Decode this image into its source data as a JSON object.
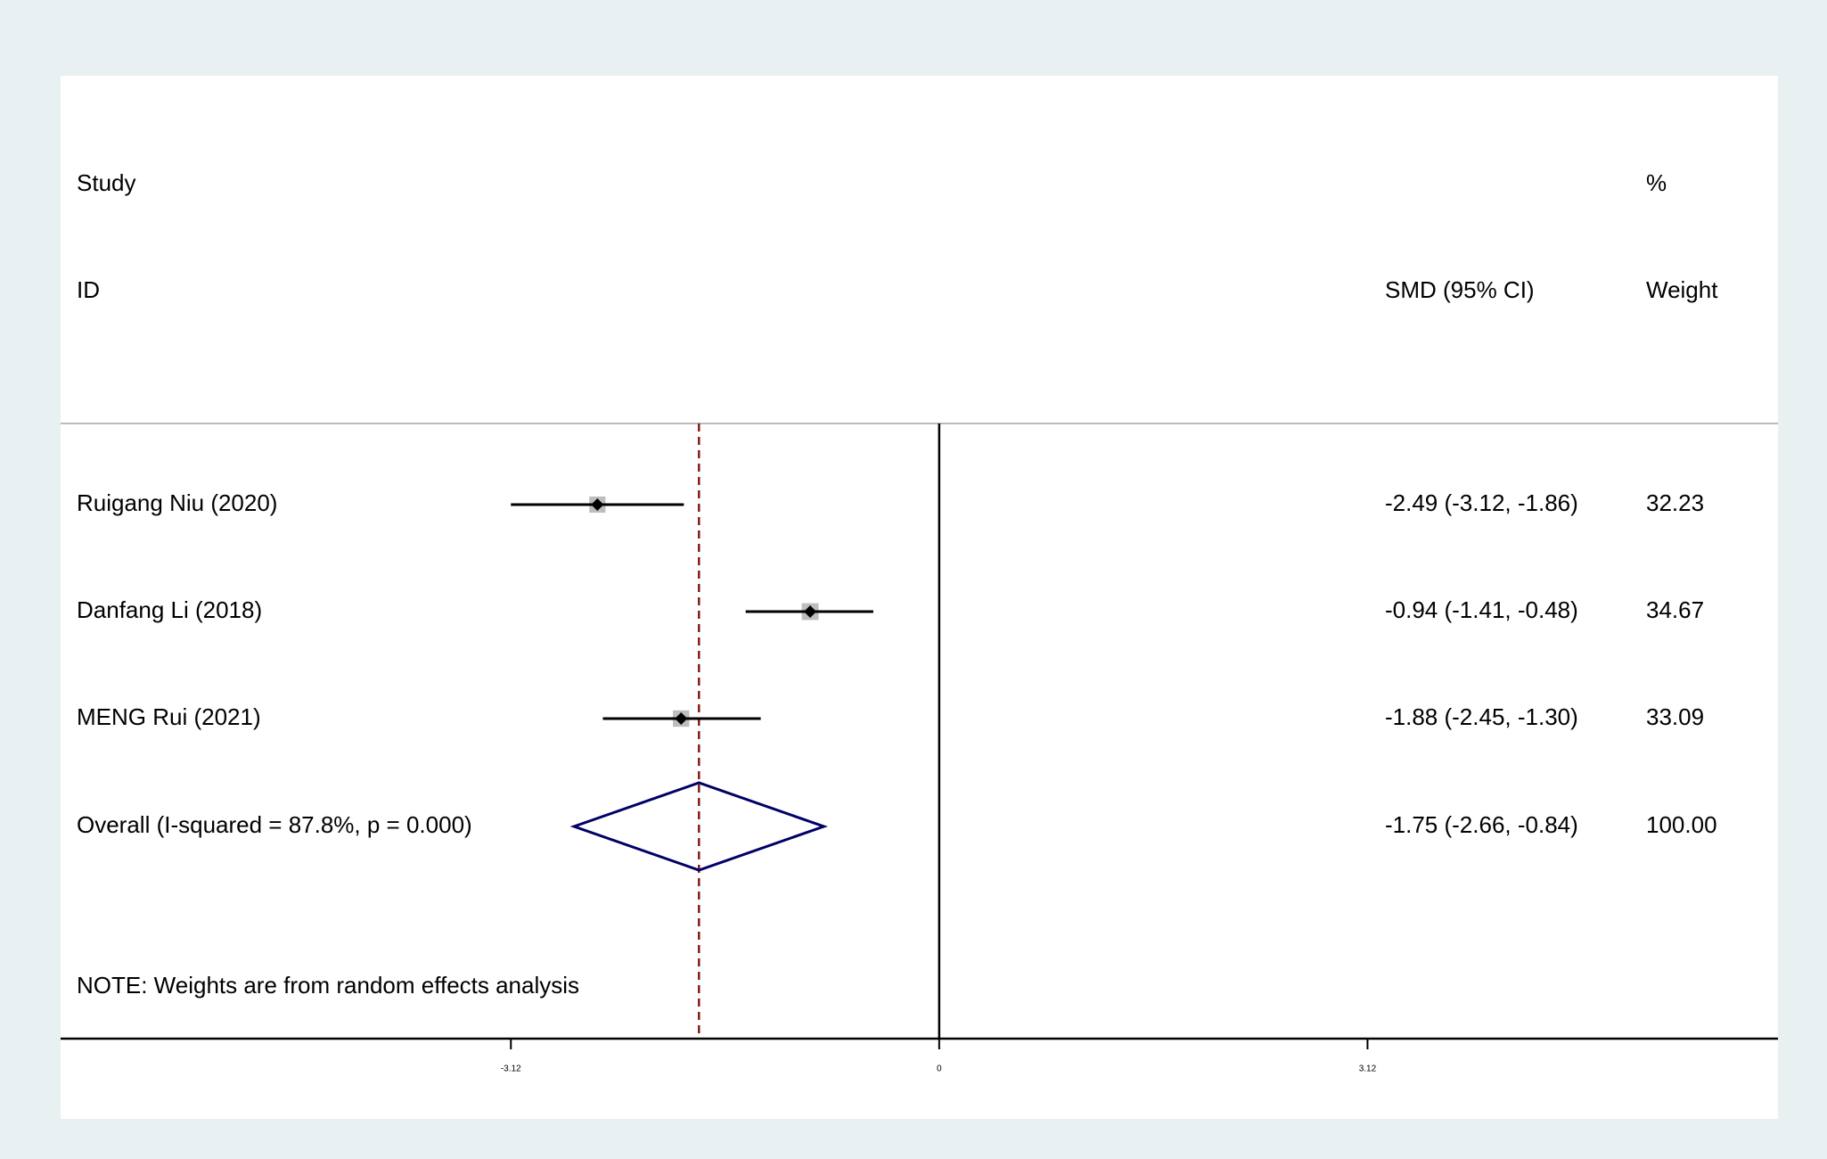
{
  "chart_data": {
    "type": "forest",
    "headers": {
      "study": "Study",
      "id": "ID",
      "effect": "SMD (95% CI)",
      "percent": "%",
      "weight": "Weight"
    },
    "studies": [
      {
        "label": "Ruigang Niu (2020)",
        "smd": -2.49,
        "lower": -3.12,
        "upper": -1.86,
        "ci_text": "-2.49 (-3.12, -1.86)",
        "weight": 32.23
      },
      {
        "label": "Danfang Li (2018)",
        "smd": -0.94,
        "lower": -1.41,
        "upper": -0.48,
        "ci_text": "-0.94 (-1.41, -0.48)",
        "weight": 34.67
      },
      {
        "label": "MENG Rui (2021)",
        "smd": -1.88,
        "lower": -2.45,
        "upper": -1.3,
        "ci_text": "-1.88 (-2.45, -1.30)",
        "weight": 33.09
      }
    ],
    "overall": {
      "label": "Overall  (I-squared = 87.8%, p = 0.000)",
      "smd": -1.75,
      "lower": -2.66,
      "upper": -0.84,
      "ci_text": "-1.75 (-2.66, -0.84)",
      "weight": {
        "value": 100,
        "label": "100.00"
      }
    },
    "note": "NOTE: Weights are from random effects analysis",
    "xlim": [
      -6.4,
      6.11
    ],
    "xticks": [
      -3.12,
      0,
      3.12
    ],
    "colors": {
      "ci": "#000000",
      "box": "#bdbdbd",
      "point": "#000000",
      "diamond": "#000066",
      "overall_line": "#8b1a1a"
    }
  }
}
